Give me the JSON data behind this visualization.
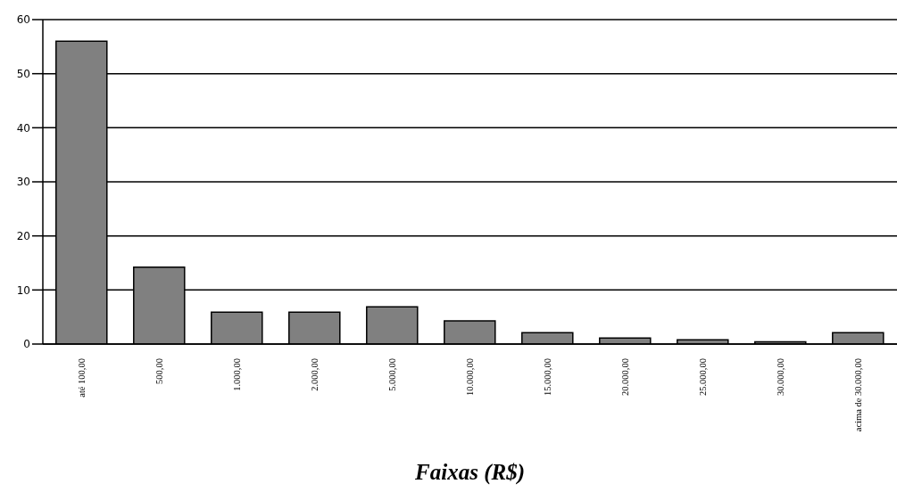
{
  "chart_data": {
    "type": "bar",
    "xlabel": "Faixas (R$)",
    "categories": [
      "até 100,00",
      "500,00",
      "1.000,00",
      "2.000,00",
      "5.000,00",
      "10.000,00",
      "15.000,00",
      "20.000,00",
      "25.000,00",
      "30.000,00",
      "acima de 30.000,00"
    ],
    "values": [
      56,
      14.2,
      5.9,
      5.9,
      6.9,
      4.3,
      2.1,
      1.1,
      0.8,
      0.4,
      2.1
    ],
    "color": "#808080",
    "ylim": [
      0,
      60
    ],
    "yticks": [
      0,
      10,
      20,
      30,
      40,
      50,
      60
    ],
    "grid": "y",
    "legend": false
  }
}
